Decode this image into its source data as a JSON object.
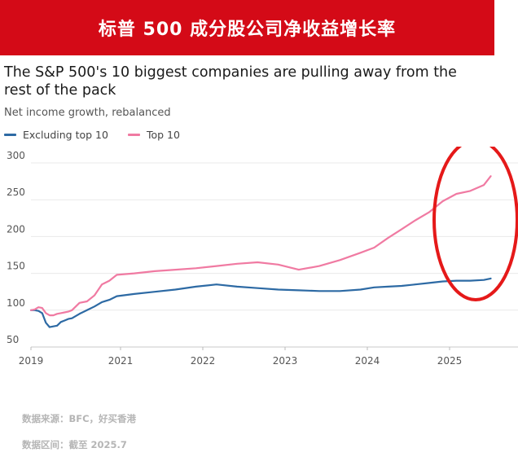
{
  "banner": {
    "title": "标普 500 成分股公司净收益增长率"
  },
  "footer": {
    "source": "数据来源：BFC，好买香港",
    "range": "数据区间：截至 2025.7"
  },
  "colors": {
    "banner": "#d40a17",
    "excl": "#2d6aa4",
    "top": "#f07aa2",
    "highlight": "#e51919"
  },
  "chart_data": {
    "type": "line",
    "title": "The S&P 500's 10 biggest companies are pulling away from the rest of the pack",
    "subtitle": "Net income growth, rebalanced",
    "xlabel": "",
    "ylabel": "",
    "x_ticks": [
      "2019",
      "2021",
      "2022",
      "2023",
      "2024",
      "2025"
    ],
    "y_ticks": [
      50,
      100,
      150,
      200,
      250,
      300
    ],
    "ylim": [
      50,
      300
    ],
    "grid": "horizontal",
    "legend_position": "top-left",
    "annotation": "red ellipse highlighting 2025 divergence",
    "series": [
      {
        "name": "Excluding top 10",
        "color": "#2d6aa4",
        "points": [
          [
            "2019-01",
            100
          ],
          [
            "2019-02",
            100
          ],
          [
            "2019-03",
            99
          ],
          [
            "2019-04",
            96
          ],
          [
            "2019-05",
            83
          ],
          [
            "2019-06",
            77
          ],
          [
            "2019-07",
            78
          ],
          [
            "2019-08",
            79
          ],
          [
            "2019-09",
            84
          ],
          [
            "2019-10",
            86
          ],
          [
            "2019-11",
            88
          ],
          [
            "2019-12",
            89
          ],
          [
            "2020-02",
            95
          ],
          [
            "2020-04",
            100
          ],
          [
            "2020-06",
            105
          ],
          [
            "2020-08",
            111
          ],
          [
            "2020-10",
            114
          ],
          [
            "2020-12",
            119
          ],
          [
            "2021-03",
            122
          ],
          [
            "2021-06",
            125
          ],
          [
            "2021-09",
            128
          ],
          [
            "2021-12",
            132
          ],
          [
            "2022-03",
            135
          ],
          [
            "2022-06",
            132
          ],
          [
            "2022-09",
            130
          ],
          [
            "2022-12",
            128
          ],
          [
            "2023-03",
            127
          ],
          [
            "2023-06",
            126
          ],
          [
            "2023-09",
            126
          ],
          [
            "2023-12",
            128
          ],
          [
            "2024-02",
            131
          ],
          [
            "2024-04",
            132
          ],
          [
            "2024-06",
            133
          ],
          [
            "2024-08",
            135
          ],
          [
            "2024-10",
            137
          ],
          [
            "2024-12",
            139
          ],
          [
            "2025-02",
            140
          ],
          [
            "2025-04",
            140
          ],
          [
            "2025-06",
            141
          ],
          [
            "2025-07",
            143
          ]
        ]
      },
      {
        "name": "Top 10",
        "color": "#f07aa2",
        "points": [
          [
            "2019-01",
            100
          ],
          [
            "2019-02",
            101
          ],
          [
            "2019-03",
            104
          ],
          [
            "2019-04",
            103
          ],
          [
            "2019-05",
            96
          ],
          [
            "2019-06",
            93
          ],
          [
            "2019-07",
            93
          ],
          [
            "2019-08",
            95
          ],
          [
            "2019-09",
            96
          ],
          [
            "2019-10",
            97
          ],
          [
            "2019-11",
            98
          ],
          [
            "2019-12",
            100
          ],
          [
            "2020-02",
            110
          ],
          [
            "2020-04",
            112
          ],
          [
            "2020-06",
            120
          ],
          [
            "2020-08",
            135
          ],
          [
            "2020-10",
            140
          ],
          [
            "2020-12",
            148
          ],
          [
            "2021-03",
            150
          ],
          [
            "2021-06",
            153
          ],
          [
            "2021-09",
            155
          ],
          [
            "2021-12",
            157
          ],
          [
            "2022-03",
            160
          ],
          [
            "2022-06",
            163
          ],
          [
            "2022-09",
            165
          ],
          [
            "2022-12",
            162
          ],
          [
            "2023-03",
            155
          ],
          [
            "2023-06",
            160
          ],
          [
            "2023-09",
            168
          ],
          [
            "2023-12",
            178
          ],
          [
            "2024-02",
            185
          ],
          [
            "2024-04",
            198
          ],
          [
            "2024-06",
            210
          ],
          [
            "2024-08",
            222
          ],
          [
            "2024-10",
            233
          ],
          [
            "2024-12",
            248
          ],
          [
            "2025-02",
            258
          ],
          [
            "2025-04",
            262
          ],
          [
            "2025-06",
            270
          ],
          [
            "2025-07",
            282
          ]
        ]
      }
    ]
  }
}
